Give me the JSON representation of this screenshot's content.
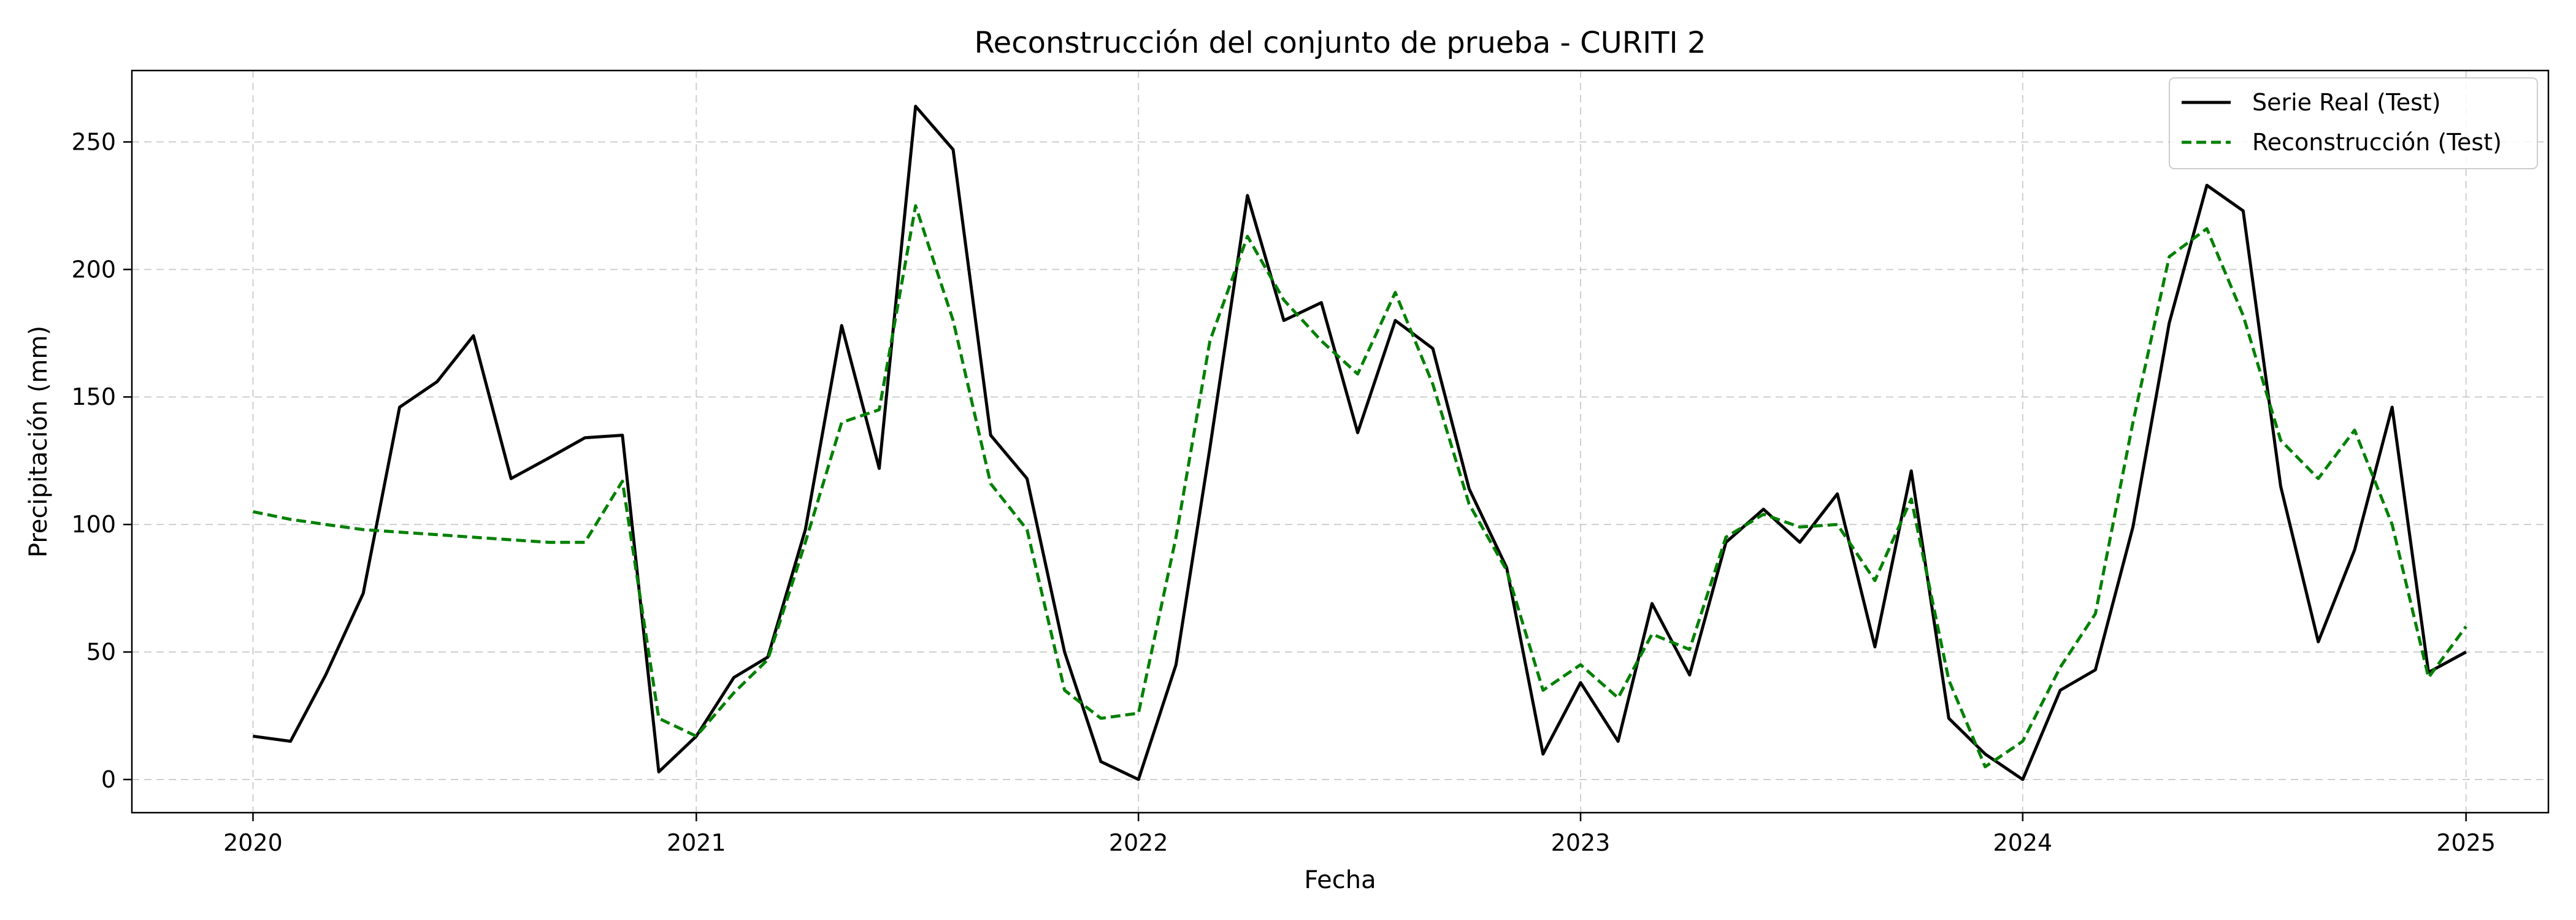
{
  "chart_data": {
    "type": "line",
    "title": "Reconstrucción del conjunto de prueba - CURITI 2",
    "xlabel": "Fecha",
    "ylabel": "Precipitación (mm)",
    "xlim": [
      "2019-09-23",
      "2025-03-10"
    ],
    "ylim": [
      -13,
      278
    ],
    "x_ticks": [
      "2020",
      "2021",
      "2022",
      "2023",
      "2024",
      "2025"
    ],
    "y_ticks": [
      0,
      50,
      100,
      150,
      200,
      250
    ],
    "grid": true,
    "legend_position": "top-right",
    "x": [
      "2020-01-01",
      "2020-02-01",
      "2020-03-01",
      "2020-04-01",
      "2020-05-01",
      "2020-06-01",
      "2020-07-01",
      "2020-08-01",
      "2020-09-01",
      "2020-10-01",
      "2020-11-01",
      "2020-12-01",
      "2021-01-01",
      "2021-02-01",
      "2021-03-01",
      "2021-04-01",
      "2021-05-01",
      "2021-06-01",
      "2021-07-01",
      "2021-08-01",
      "2021-09-01",
      "2021-10-01",
      "2021-11-01",
      "2021-12-01",
      "2022-01-01",
      "2022-02-01",
      "2022-03-01",
      "2022-04-01",
      "2022-05-01",
      "2022-06-01",
      "2022-07-01",
      "2022-08-01",
      "2022-09-01",
      "2022-10-01",
      "2022-11-01",
      "2022-12-01",
      "2023-01-01",
      "2023-02-01",
      "2023-03-01",
      "2023-04-01",
      "2023-05-01",
      "2023-06-01",
      "2023-07-01",
      "2023-08-01",
      "2023-09-01",
      "2023-10-01",
      "2023-11-01",
      "2023-12-01",
      "2024-01-01",
      "2024-02-01",
      "2024-03-01",
      "2024-04-01",
      "2024-05-01",
      "2024-06-01",
      "2024-07-01",
      "2024-08-01",
      "2024-09-01",
      "2024-10-01",
      "2024-11-01",
      "2024-12-01",
      "2025-01-01"
    ],
    "series": [
      {
        "name": "Serie Real (Test)",
        "color": "#000000",
        "style": "solid",
        "values": [
          17,
          15,
          41,
          73,
          146,
          156,
          174,
          118,
          126,
          134,
          135,
          3,
          17,
          40,
          48,
          98,
          178,
          122,
          264,
          247,
          135,
          118,
          50,
          7,
          0,
          45,
          130,
          229,
          180,
          187,
          136,
          180,
          169,
          114,
          83,
          10,
          38,
          15,
          69,
          41,
          93,
          106,
          93,
          112,
          52,
          121,
          24,
          10,
          0,
          35,
          43,
          99,
          179,
          233,
          223,
          115,
          54,
          90,
          146,
          42,
          50
        ]
      },
      {
        "name": "Reconstrucción (Test)",
        "color": "#008000",
        "style": "dashed",
        "values": [
          105,
          102,
          100,
          98,
          97,
          96,
          95,
          94,
          93,
          93,
          117,
          24,
          17,
          34,
          47,
          93,
          140,
          145,
          225,
          180,
          116,
          98,
          35,
          24,
          26,
          95,
          172,
          213,
          188,
          172,
          159,
          191,
          155,
          108,
          82,
          35,
          45,
          32,
          57,
          51,
          95,
          104,
          99,
          100,
          78,
          110,
          39,
          5,
          15,
          44,
          65,
          140,
          205,
          216,
          182,
          133,
          118,
          137,
          100,
          40,
          60
        ]
      }
    ]
  }
}
